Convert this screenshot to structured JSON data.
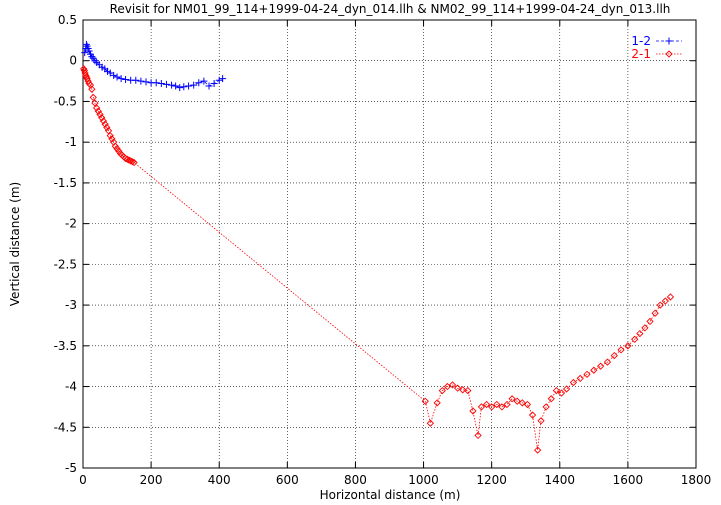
{
  "chart_data": {
    "type": "line",
    "title": "Revisit for NM01_99_114+1999-04-24_dyn_014.llh & NM02_99_114+1999-04-24_dyn_013.llh",
    "xlabel": "Horizontal distance (m)",
    "ylabel": "Vertical distance (m)",
    "xlim": [
      0,
      1800
    ],
    "ylim": [
      -5,
      0.5
    ],
    "xticks": [
      "0",
      "200",
      "400",
      "600",
      "800",
      "1000",
      "1200",
      "1400",
      "1600",
      "1800"
    ],
    "yticks": [
      "0.5",
      "0",
      "-0.5",
      "-1",
      "-1.5",
      "-2",
      "-2.5",
      "-3",
      "-3.5",
      "-4",
      "-4.5",
      "-5"
    ],
    "grid": true,
    "legend_position": "top-right",
    "series": [
      {
        "name": "1-2",
        "color": "#0000ff",
        "marker": "plus",
        "line": "dashed",
        "x": [
          5,
          8,
          10,
          12,
          15,
          18,
          22,
          26,
          30,
          35,
          40,
          48,
          56,
          64,
          72,
          80,
          90,
          100,
          112,
          125,
          140,
          155,
          170,
          185,
          200,
          215,
          230,
          245,
          260,
          272,
          284,
          296,
          310,
          325,
          340,
          355,
          370,
          385,
          400,
          410
        ],
        "y": [
          0.1,
          0.15,
          0.2,
          0.18,
          0.15,
          0.12,
          0.08,
          0.05,
          0.03,
          0.0,
          -0.02,
          -0.05,
          -0.08,
          -0.1,
          -0.13,
          -0.15,
          -0.18,
          -0.2,
          -0.22,
          -0.23,
          -0.24,
          -0.24,
          -0.25,
          -0.26,
          -0.27,
          -0.27,
          -0.28,
          -0.29,
          -0.3,
          -0.31,
          -0.33,
          -0.32,
          -0.31,
          -0.3,
          -0.27,
          -0.25,
          -0.31,
          -0.28,
          -0.24,
          -0.22
        ]
      },
      {
        "name": "2-1",
        "color": "#ff0000",
        "marker": "diamond",
        "line": "dotted",
        "x": [
          2,
          4,
          6,
          8,
          10,
          12,
          15,
          18,
          22,
          26,
          30,
          35,
          40,
          45,
          50,
          55,
          60,
          65,
          70,
          75,
          80,
          85,
          90,
          95,
          100,
          105,
          110,
          115,
          120,
          125,
          130,
          135,
          140,
          145,
          150,
          1005,
          1020,
          1040,
          1055,
          1070,
          1085,
          1100,
          1115,
          1130,
          1145,
          1160,
          1170,
          1185,
          1200,
          1215,
          1230,
          1245,
          1260,
          1275,
          1290,
          1305,
          1320,
          1335,
          1345,
          1360,
          1375,
          1390,
          1405,
          1420,
          1440,
          1460,
          1480,
          1500,
          1520,
          1540,
          1560,
          1580,
          1600,
          1620,
          1635,
          1650,
          1665,
          1680,
          1695,
          1710,
          1725
        ],
        "y": [
          -0.1,
          -0.12,
          -0.15,
          -0.18,
          -0.2,
          -0.22,
          -0.25,
          -0.28,
          -0.3,
          -0.35,
          -0.45,
          -0.52,
          -0.58,
          -0.62,
          -0.66,
          -0.7,
          -0.74,
          -0.78,
          -0.82,
          -0.86,
          -0.92,
          -0.96,
          -1.0,
          -1.05,
          -1.08,
          -1.11,
          -1.14,
          -1.16,
          -1.18,
          -1.2,
          -1.21,
          -1.22,
          -1.23,
          -1.24,
          -1.25,
          -4.18,
          -4.45,
          -4.2,
          -4.05,
          -4.0,
          -3.98,
          -4.02,
          -4.04,
          -4.05,
          -4.3,
          -4.6,
          -4.25,
          -4.22,
          -4.25,
          -4.22,
          -4.25,
          -4.22,
          -4.15,
          -4.18,
          -4.2,
          -4.22,
          -4.35,
          -4.78,
          -4.42,
          -4.25,
          -4.15,
          -4.05,
          -4.08,
          -4.03,
          -3.95,
          -3.9,
          -3.85,
          -3.8,
          -3.75,
          -3.7,
          -3.62,
          -3.55,
          -3.5,
          -3.42,
          -3.35,
          -3.28,
          -3.2,
          -3.1,
          -3.0,
          -2.95,
          -2.9
        ]
      }
    ]
  }
}
